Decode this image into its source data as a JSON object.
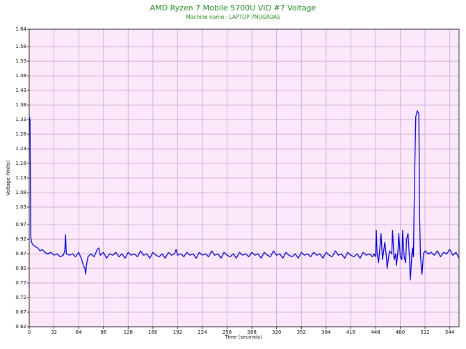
{
  "chart_data": {
    "type": "line",
    "title": "AMD Ryzen 7 Mobile 5700U VID #7 Voltage",
    "subtitle": "Machine name : LAPTOP-7NUGR0AS",
    "x_label": "Time (seconds)",
    "y_label": "Voltage (Volts)",
    "xlim": [
      0,
      556
    ],
    "xticks": [
      0,
      32,
      64,
      96,
      128,
      160,
      192,
      224,
      256,
      288,
      320,
      352,
      384,
      416,
      448,
      480,
      512,
      544
    ],
    "ylim": [
      0.62,
      1.64
    ],
    "yticks": [
      0.62,
      0.67,
      0.72,
      0.77,
      0.82,
      0.87,
      0.92,
      0.97,
      1.03,
      1.08,
      1.13,
      1.18,
      1.23,
      1.28,
      1.33,
      1.38,
      1.43,
      1.48,
      1.53,
      1.58,
      1.64
    ],
    "grid": true,
    "background": "#fbe8fb",
    "grid_color": "#c9a3c9",
    "x": [
      0,
      1,
      2,
      3,
      5,
      8,
      11,
      14,
      17,
      20,
      24,
      28,
      32,
      36,
      40,
      44,
      46,
      47,
      48,
      52,
      56,
      60,
      64,
      68,
      70,
      72,
      73,
      74,
      76,
      80,
      84,
      88,
      90,
      92,
      96,
      100,
      104,
      108,
      112,
      116,
      120,
      124,
      128,
      132,
      136,
      140,
      144,
      148,
      152,
      156,
      160,
      164,
      168,
      172,
      176,
      180,
      184,
      188,
      190,
      192,
      196,
      200,
      204,
      208,
      212,
      216,
      220,
      224,
      228,
      232,
      236,
      240,
      244,
      248,
      252,
      256,
      260,
      264,
      268,
      272,
      276,
      280,
      284,
      288,
      292,
      296,
      300,
      304,
      308,
      312,
      316,
      320,
      324,
      328,
      332,
      336,
      340,
      344,
      348,
      352,
      356,
      360,
      364,
      368,
      372,
      376,
      380,
      384,
      388,
      392,
      396,
      400,
      404,
      408,
      412,
      416,
      420,
      424,
      428,
      432,
      436,
      440,
      444,
      446,
      448,
      449,
      450,
      452,
      455,
      457,
      460,
      462,
      463,
      466,
      469,
      470,
      472,
      474,
      475,
      477,
      478,
      480,
      482,
      483,
      485,
      487,
      488,
      490,
      492,
      493,
      495,
      496,
      497,
      498,
      499,
      500,
      502,
      504,
      505,
      506,
      507,
      508,
      510,
      512,
      516,
      520,
      524,
      528,
      532,
      536,
      540,
      544,
      548,
      552,
      556
    ],
    "series": [
      {
        "name": "VID #7",
        "color": "#0000cc",
        "values": [
          1.34,
          1.33,
          0.93,
          0.91,
          0.9,
          0.895,
          0.89,
          0.88,
          0.885,
          0.875,
          0.87,
          0.875,
          0.865,
          0.87,
          0.86,
          0.865,
          0.88,
          0.935,
          0.87,
          0.865,
          0.87,
          0.86,
          0.875,
          0.85,
          0.83,
          0.82,
          0.8,
          0.83,
          0.86,
          0.87,
          0.86,
          0.885,
          0.89,
          0.865,
          0.875,
          0.855,
          0.87,
          0.865,
          0.875,
          0.86,
          0.87,
          0.855,
          0.875,
          0.865,
          0.87,
          0.86,
          0.88,
          0.865,
          0.87,
          0.855,
          0.875,
          0.865,
          0.86,
          0.87,
          0.855,
          0.875,
          0.865,
          0.87,
          0.885,
          0.865,
          0.87,
          0.86,
          0.875,
          0.865,
          0.87,
          0.855,
          0.875,
          0.865,
          0.87,
          0.86,
          0.88,
          0.865,
          0.87,
          0.855,
          0.875,
          0.865,
          0.86,
          0.87,
          0.855,
          0.875,
          0.865,
          0.87,
          0.86,
          0.875,
          0.865,
          0.87,
          0.855,
          0.875,
          0.865,
          0.86,
          0.88,
          0.865,
          0.87,
          0.855,
          0.875,
          0.865,
          0.86,
          0.87,
          0.855,
          0.875,
          0.865,
          0.87,
          0.86,
          0.875,
          0.865,
          0.87,
          0.855,
          0.875,
          0.865,
          0.86,
          0.88,
          0.865,
          0.87,
          0.855,
          0.875,
          0.865,
          0.86,
          0.87,
          0.855,
          0.875,
          0.865,
          0.87,
          0.86,
          0.87,
          0.86,
          0.95,
          0.87,
          0.84,
          0.94,
          0.85,
          0.91,
          0.86,
          0.82,
          0.88,
          0.87,
          0.95,
          0.85,
          0.87,
          0.83,
          0.88,
          0.94,
          0.86,
          0.85,
          0.95,
          0.86,
          0.84,
          0.92,
          0.94,
          0.85,
          0.78,
          0.87,
          0.89,
          0.86,
          1.05,
          1.2,
          1.34,
          1.36,
          1.35,
          1.0,
          0.87,
          0.83,
          0.8,
          0.87,
          0.88,
          0.87,
          0.875,
          0.865,
          0.88,
          0.86,
          0.875,
          0.87,
          0.885,
          0.865,
          0.875,
          0.855
        ]
      }
    ]
  }
}
